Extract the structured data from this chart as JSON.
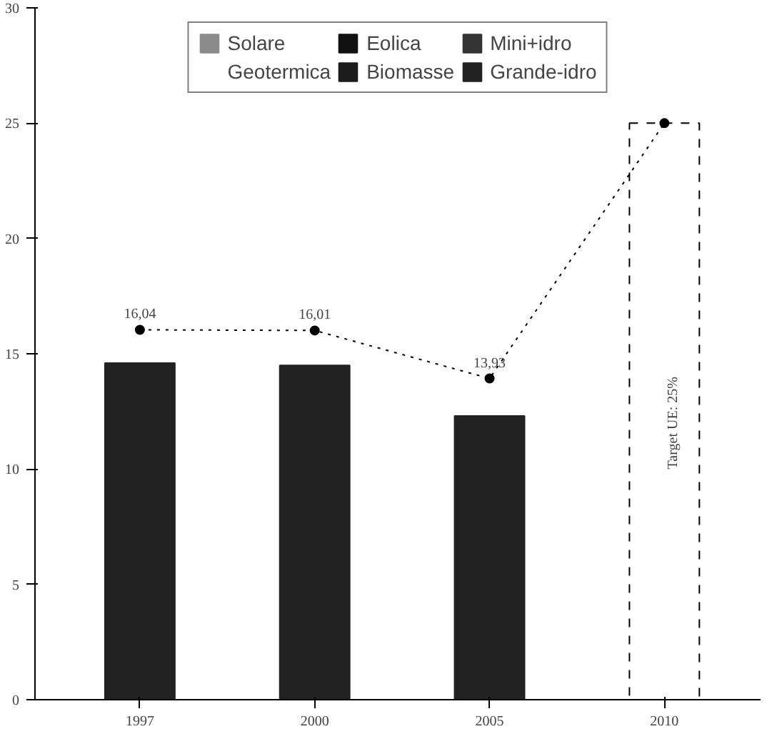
{
  "chart_data": {
    "type": "bar",
    "categories": [
      "1997",
      "2000",
      "2005",
      "2010"
    ],
    "series": [
      {
        "name": "Solare",
        "color": "#8a8a8a",
        "values": [
          null,
          null,
          null,
          null
        ]
      },
      {
        "name": "Eolica",
        "color": "#111111",
        "values": [
          null,
          null,
          null,
          null
        ]
      },
      {
        "name": "Mini+idro",
        "color": "#333333",
        "values": [
          null,
          null,
          null,
          null
        ]
      },
      {
        "name": "Geotermica",
        "values": [
          null,
          null,
          null,
          null
        ]
      },
      {
        "name": "Biomasse",
        "color": "#1c1c1c",
        "values": [
          null,
          null,
          null,
          null
        ]
      },
      {
        "name": "Grande-idro",
        "color": "#222222",
        "values": [
          14.6,
          14.5,
          12.3,
          null
        ]
      },
      {
        "type": "bar",
        "color": "#ffffff",
        "line_style": "dashed",
        "values": [
          null,
          null,
          null,
          25
        ]
      },
      {
        "type": "line",
        "color": "#000000",
        "marker": "circle",
        "line_style": "dotted",
        "values": [
          16.04,
          16.01,
          13.93,
          25
        ],
        "value_labels": [
          "16,04",
          "16,01",
          "13,93",
          null
        ]
      }
    ],
    "ylim": [
      0,
      30
    ],
    "yticks": [
      0,
      5,
      10,
      15,
      20,
      25,
      30
    ],
    "annotations": [
      "Target UE: 25%"
    ],
    "legend": "top",
    "grid": false
  }
}
